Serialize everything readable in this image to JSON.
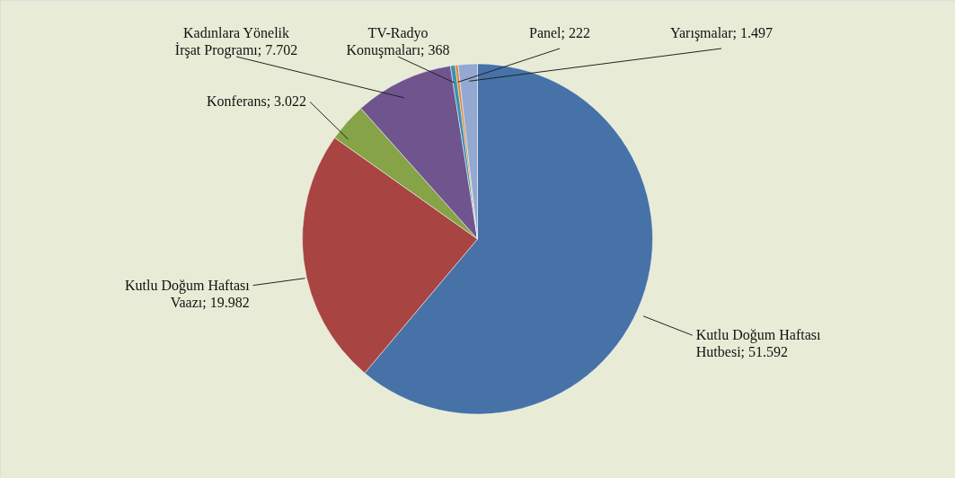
{
  "chart_data": {
    "type": "pie",
    "categories": [
      "Kutlu Doğum Haftası Hutbesi",
      "Kutlu Doğum Haftası Vaazı",
      "Konferans",
      "Kadınlara Yönelik İrşat Programı",
      "TV-Radyo Konuşmaları",
      "Panel",
      "Yarışmalar"
    ],
    "values": [
      51592,
      19982,
      3022,
      7702,
      368,
      222,
      1497
    ],
    "value_labels": [
      "51.592",
      "19.982",
      "3.022",
      "7.702",
      "368",
      "222",
      "1.497"
    ],
    "colors": [
      "#4672a8",
      "#a84442",
      "#86a447",
      "#6f548e",
      "#3b92ad",
      "#e0813a",
      "#93a9d1"
    ]
  }
}
